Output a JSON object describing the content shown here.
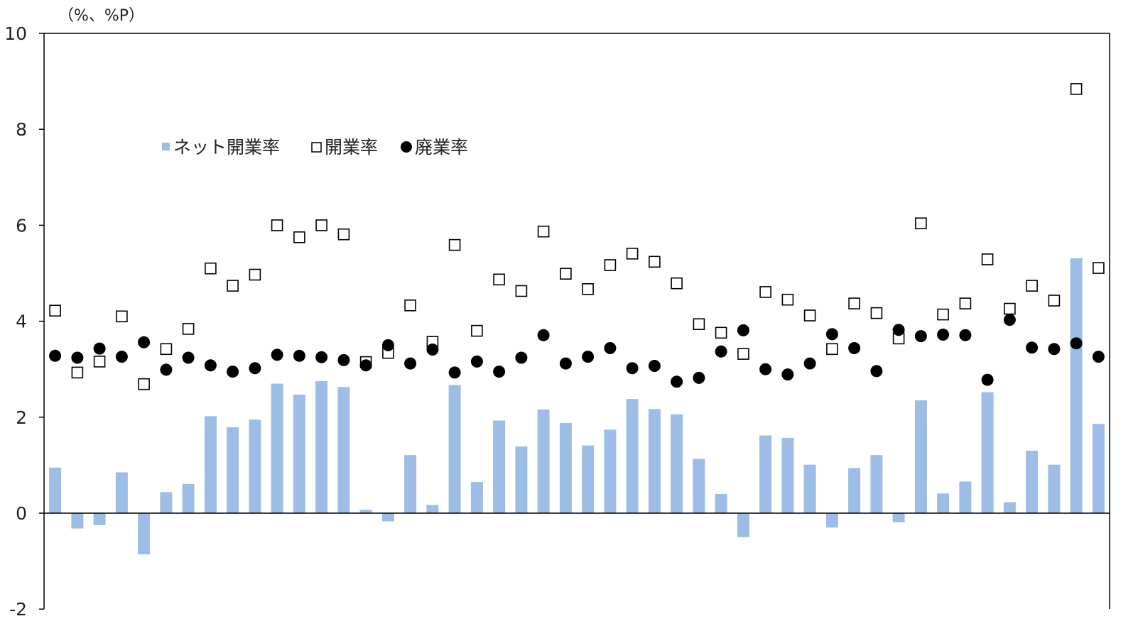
{
  "chart_data": {
    "type": "bar",
    "unit_label": "（%、%P）",
    "title": "",
    "xlabel": "",
    "ylabel": "",
    "ylim": [
      -2,
      10
    ],
    "yticks": [
      -2,
      0,
      2,
      4,
      6,
      8,
      10
    ],
    "ytick_labels": [
      "-2",
      "0",
      "2",
      "4",
      "6",
      "8",
      "10"
    ],
    "grid": false,
    "legend_position": "top-left",
    "count": 48,
    "series": [
      {
        "name": "ネット開業率",
        "kind": "bar",
        "color": "#9dbde6",
        "values": [
          0.95,
          -0.32,
          -0.25,
          0.85,
          -0.86,
          0.44,
          0.61,
          2.02,
          1.79,
          1.95,
          2.7,
          2.47,
          2.75,
          2.63,
          0.07,
          -0.17,
          1.21,
          0.17,
          2.67,
          0.65,
          1.93,
          1.39,
          2.16,
          1.88,
          1.41,
          1.74,
          2.38,
          2.17,
          2.06,
          1.13,
          0.4,
          -0.5,
          1.62,
          1.57,
          1.01,
          -0.3,
          0.94,
          1.21,
          -0.19,
          2.35,
          0.41,
          0.66,
          2.52,
          0.23,
          1.3,
          1.01,
          5.31,
          1.86
        ]
      },
      {
        "name": "開業率",
        "kind": "marker",
        "marker": "open-square",
        "color": "#000000",
        "values": [
          4.22,
          2.93,
          3.16,
          4.1,
          2.69,
          3.42,
          3.84,
          5.1,
          4.74,
          4.97,
          6.0,
          5.75,
          6.0,
          5.81,
          3.15,
          3.34,
          4.33,
          3.57,
          5.59,
          3.8,
          4.87,
          4.63,
          5.87,
          4.99,
          4.67,
          5.17,
          5.41,
          5.24,
          4.79,
          3.94,
          3.76,
          3.32,
          4.61,
          4.45,
          4.12,
          3.42,
          4.37,
          4.17,
          3.64,
          6.04,
          4.14,
          4.37,
          5.29,
          4.26,
          4.74,
          4.43,
          8.84,
          5.11
        ]
      },
      {
        "name": "廃業率",
        "kind": "marker",
        "marker": "filled-circle",
        "color": "#000000",
        "values": [
          3.28,
          3.24,
          3.43,
          3.26,
          3.56,
          2.99,
          3.24,
          3.08,
          2.95,
          3.02,
          3.3,
          3.28,
          3.25,
          3.19,
          3.08,
          3.5,
          3.12,
          3.41,
          2.93,
          3.16,
          2.95,
          3.24,
          3.71,
          3.12,
          3.26,
          3.44,
          3.02,
          3.07,
          2.74,
          2.82,
          3.37,
          3.81,
          3.0,
          2.89,
          3.12,
          3.73,
          3.44,
          2.96,
          3.82,
          3.69,
          3.72,
          3.71,
          2.78,
          4.03,
          3.45,
          3.42,
          3.54,
          3.26
        ]
      }
    ]
  }
}
